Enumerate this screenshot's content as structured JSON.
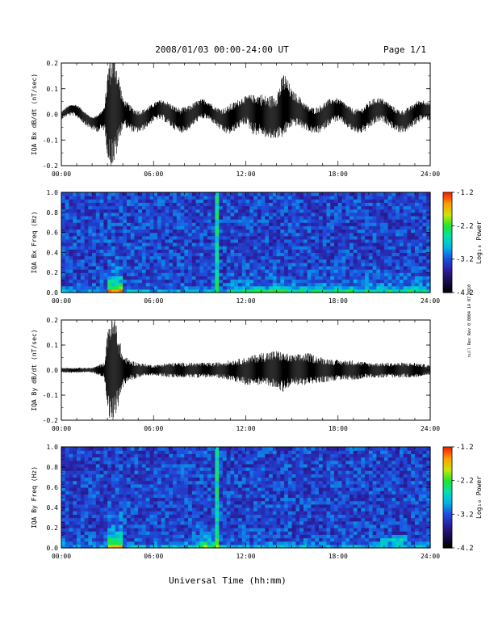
{
  "header": {
    "title": "2008/01/03  00:00-24:00 UT",
    "page": "Page 1/1"
  },
  "x_axis": {
    "xlabel": "Universal Time (hh:mm)",
    "range_hours": [
      0,
      24
    ],
    "tick_labels": [
      "00:00",
      "06:00",
      "12:00",
      "18:00",
      "24:00"
    ]
  },
  "side_note": "null Rev Rev 0 0004 14 07 0010",
  "colormap": {
    "stops": [
      "#000000",
      "#1c0a50",
      "#2b1fa0",
      "#1e4fe0",
      "#00b4e6",
      "#00e0b0",
      "#1ee632",
      "#c8e600",
      "#ffa000",
      "#ff1e00"
    ]
  },
  "chart_data": [
    {
      "type": "line",
      "ylabel": "IQA Bx dB/dt (nT/sec)",
      "ylim": [
        -0.2,
        0.2
      ],
      "yticks": [
        -0.2,
        -0.1,
        0.0,
        0.1,
        0.2
      ],
      "ytick_labels": [
        "-0.2",
        "-0.1",
        "0.0",
        "0.1",
        "0.2"
      ],
      "envelope": {
        "x": [
          0,
          1,
          2,
          2.8,
          3.1,
          3.3,
          3.5,
          3.7,
          4,
          5,
          6,
          7,
          8,
          9,
          10,
          11,
          12,
          12.5,
          13,
          14,
          14.5,
          15,
          16,
          17,
          18,
          19,
          20,
          21,
          22,
          23,
          24
        ],
        "upper": [
          0.01,
          0.02,
          0.01,
          0.03,
          0.22,
          0.22,
          0.22,
          0.15,
          0.05,
          0.04,
          0.03,
          0.04,
          0.05,
          0.04,
          0.03,
          0.06,
          0.05,
          0.06,
          0.09,
          0.1,
          0.16,
          0.07,
          0.05,
          0.05,
          0.04,
          0.04,
          0.05,
          0.04,
          0.04,
          0.04,
          0.03
        ],
        "lower": [
          -0.02,
          -0.03,
          -0.04,
          -0.06,
          -0.22,
          -0.22,
          -0.22,
          -0.15,
          -0.06,
          -0.05,
          -0.04,
          -0.05,
          -0.05,
          -0.04,
          -0.04,
          -0.06,
          -0.06,
          -0.1,
          -0.07,
          -0.08,
          -0.1,
          -0.07,
          -0.05,
          -0.06,
          -0.05,
          -0.05,
          -0.06,
          -0.05,
          -0.05,
          -0.05,
          -0.04
        ]
      }
    },
    {
      "type": "heatmap",
      "ylabel": "IQA Bx Freq (Hz)",
      "ylim": [
        0.0,
        1.0
      ],
      "yticks": [
        0.0,
        0.2,
        0.4,
        0.6,
        0.8,
        1.0
      ],
      "ytick_labels": [
        "0.0",
        "0.2",
        "0.4",
        "0.6",
        "0.8",
        "1.0"
      ],
      "color_range": [
        -4.2,
        -1.2
      ],
      "colorbar_label": "Log₁₀ Power",
      "colorbar_tick_labels": [
        "-1.2",
        "-2.2",
        "-3.2",
        "-4.2"
      ]
    },
    {
      "type": "line",
      "ylabel": "IQA By dB/dt (nT/sec)",
      "ylim": [
        -0.2,
        0.2
      ],
      "yticks": [
        -0.2,
        -0.1,
        0.0,
        0.1,
        0.2
      ],
      "ytick_labels": [
        "-0.2",
        "-0.1",
        "0.0",
        "0.1",
        "0.2"
      ],
      "envelope": {
        "x": [
          0,
          1,
          2,
          2.8,
          3.1,
          3.3,
          3.5,
          3.7,
          4,
          4.5,
          5,
          6,
          7,
          8,
          9,
          10,
          11,
          12,
          13,
          14,
          14.5,
          15,
          16,
          17,
          18,
          19,
          20,
          21,
          22,
          23,
          24
        ],
        "upper": [
          0.01,
          0.01,
          0.01,
          0.03,
          0.22,
          0.22,
          0.22,
          0.15,
          0.06,
          0.04,
          0.03,
          0.02,
          0.03,
          0.03,
          0.03,
          0.03,
          0.04,
          0.05,
          0.07,
          0.08,
          0.07,
          0.06,
          0.07,
          0.05,
          0.04,
          0.04,
          0.03,
          0.03,
          0.03,
          0.03,
          0.02
        ],
        "lower": [
          -0.01,
          -0.01,
          -0.01,
          -0.03,
          -0.22,
          -0.22,
          -0.22,
          -0.15,
          -0.07,
          -0.04,
          -0.03,
          -0.02,
          -0.03,
          -0.03,
          -0.03,
          -0.03,
          -0.04,
          -0.06,
          -0.06,
          -0.07,
          -0.09,
          -0.06,
          -0.06,
          -0.05,
          -0.04,
          -0.04,
          -0.03,
          -0.03,
          -0.03,
          -0.03,
          -0.02
        ]
      }
    },
    {
      "type": "heatmap",
      "ylabel": "IQA By Freq (Hz)",
      "ylim": [
        0.0,
        1.0
      ],
      "yticks": [
        0.0,
        0.2,
        0.4,
        0.6,
        0.8,
        1.0
      ],
      "ytick_labels": [
        "0.0",
        "0.2",
        "0.4",
        "0.6",
        "0.8",
        "1.0"
      ],
      "color_range": [
        -4.2,
        -1.2
      ],
      "colorbar_label": "Log₁₀ Power",
      "colorbar_tick_labels": [
        "-1.2",
        "-2.2",
        "-3.2",
        "-4.2"
      ]
    }
  ]
}
